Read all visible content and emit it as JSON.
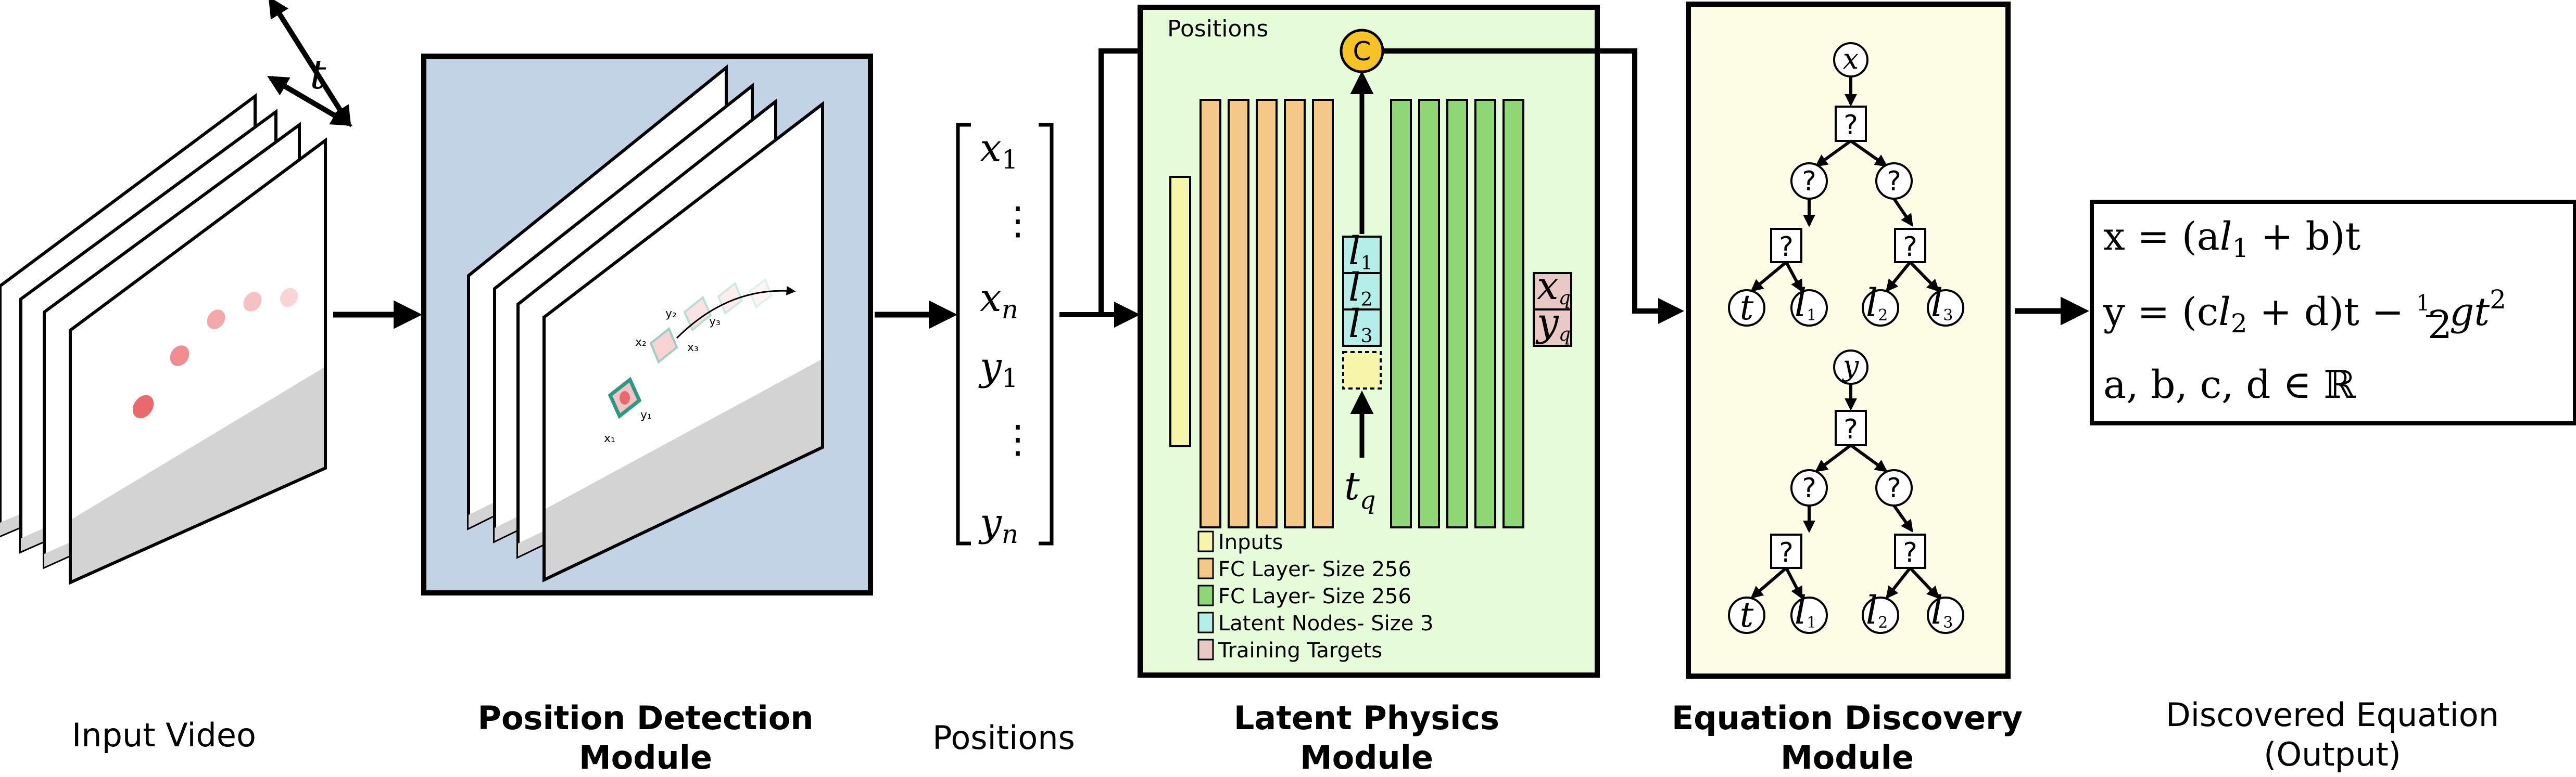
{
  "captions": {
    "input_video": "Input Video",
    "position_detection_line1": "Position Detection",
    "position_detection_line2": "Module",
    "positions": "Positions",
    "latent_physics_line1": "Latent Physics",
    "latent_physics_line2": "Module",
    "equation_discovery_line1": "Equation Discovery",
    "equation_discovery_line2": "Module",
    "discovered_line1": "Discovered Equation",
    "discovered_line2": "(Output)"
  },
  "input_video": {
    "time_axis_label": "t"
  },
  "detection_frame_labels": {
    "x1": "x₁",
    "y1": "y₁",
    "x2": "x₂",
    "y2": "y₂",
    "x3": "x₃",
    "y3": "y₃"
  },
  "position_vector": {
    "entries": [
      "x",
      "⋮",
      "x",
      "y",
      "⋮",
      "y"
    ],
    "subscripts": [
      "1",
      "",
      "n",
      "1",
      "",
      "n"
    ]
  },
  "latent_module": {
    "box_label": "Positions",
    "concat_symbol": "C",
    "latent_nodes": [
      "l",
      "l",
      "l"
    ],
    "latent_subscripts": [
      "1",
      "2",
      "3"
    ],
    "query_input": "t",
    "query_input_sub": "q",
    "targets": [
      "x",
      "y"
    ],
    "targets_sub": [
      "q",
      "q"
    ],
    "legend": [
      {
        "label": "Inputs",
        "color": "#f6f5a8"
      },
      {
        "label": "FC Layer- Size 256",
        "color": "#f4c887"
      },
      {
        "label": "FC Layer- Size 256",
        "color": "#8fd674"
      },
      {
        "label": "Latent Nodes- Size 3",
        "color": "#b3efe8"
      },
      {
        "label": "Training Targets",
        "color": "#e8c9c6"
      }
    ]
  },
  "equation_trees": [
    {
      "root": "x",
      "unknown": "?",
      "leaves": [
        "t",
        "l",
        "l",
        "l"
      ],
      "leaf_subs": [
        "",
        "1",
        "2",
        "3"
      ]
    },
    {
      "root": "y",
      "unknown": "?",
      "leaves": [
        "t",
        "l",
        "l",
        "l"
      ],
      "leaf_subs": [
        "",
        "1",
        "2",
        "3"
      ]
    }
  ],
  "discovered_equation": {
    "line1": [
      "x = (a",
      "l",
      "1",
      " + b)t"
    ],
    "line2": [
      "y = (c",
      "l",
      "2",
      " + d)t − ",
      "1",
      "2",
      "gt",
      "2"
    ],
    "line3": "a, b, c, d ∈ ℝ"
  },
  "colors": {
    "detection_bg": "#c2d3e6",
    "latent_bg": "#e6fbd8",
    "equation_bg": "#fdfde6",
    "concat_node": "#f6c322",
    "ball_red": "#e9696d",
    "frame_shadow": "#d3d3d3",
    "tracking_teal": "#2a9a84"
  }
}
